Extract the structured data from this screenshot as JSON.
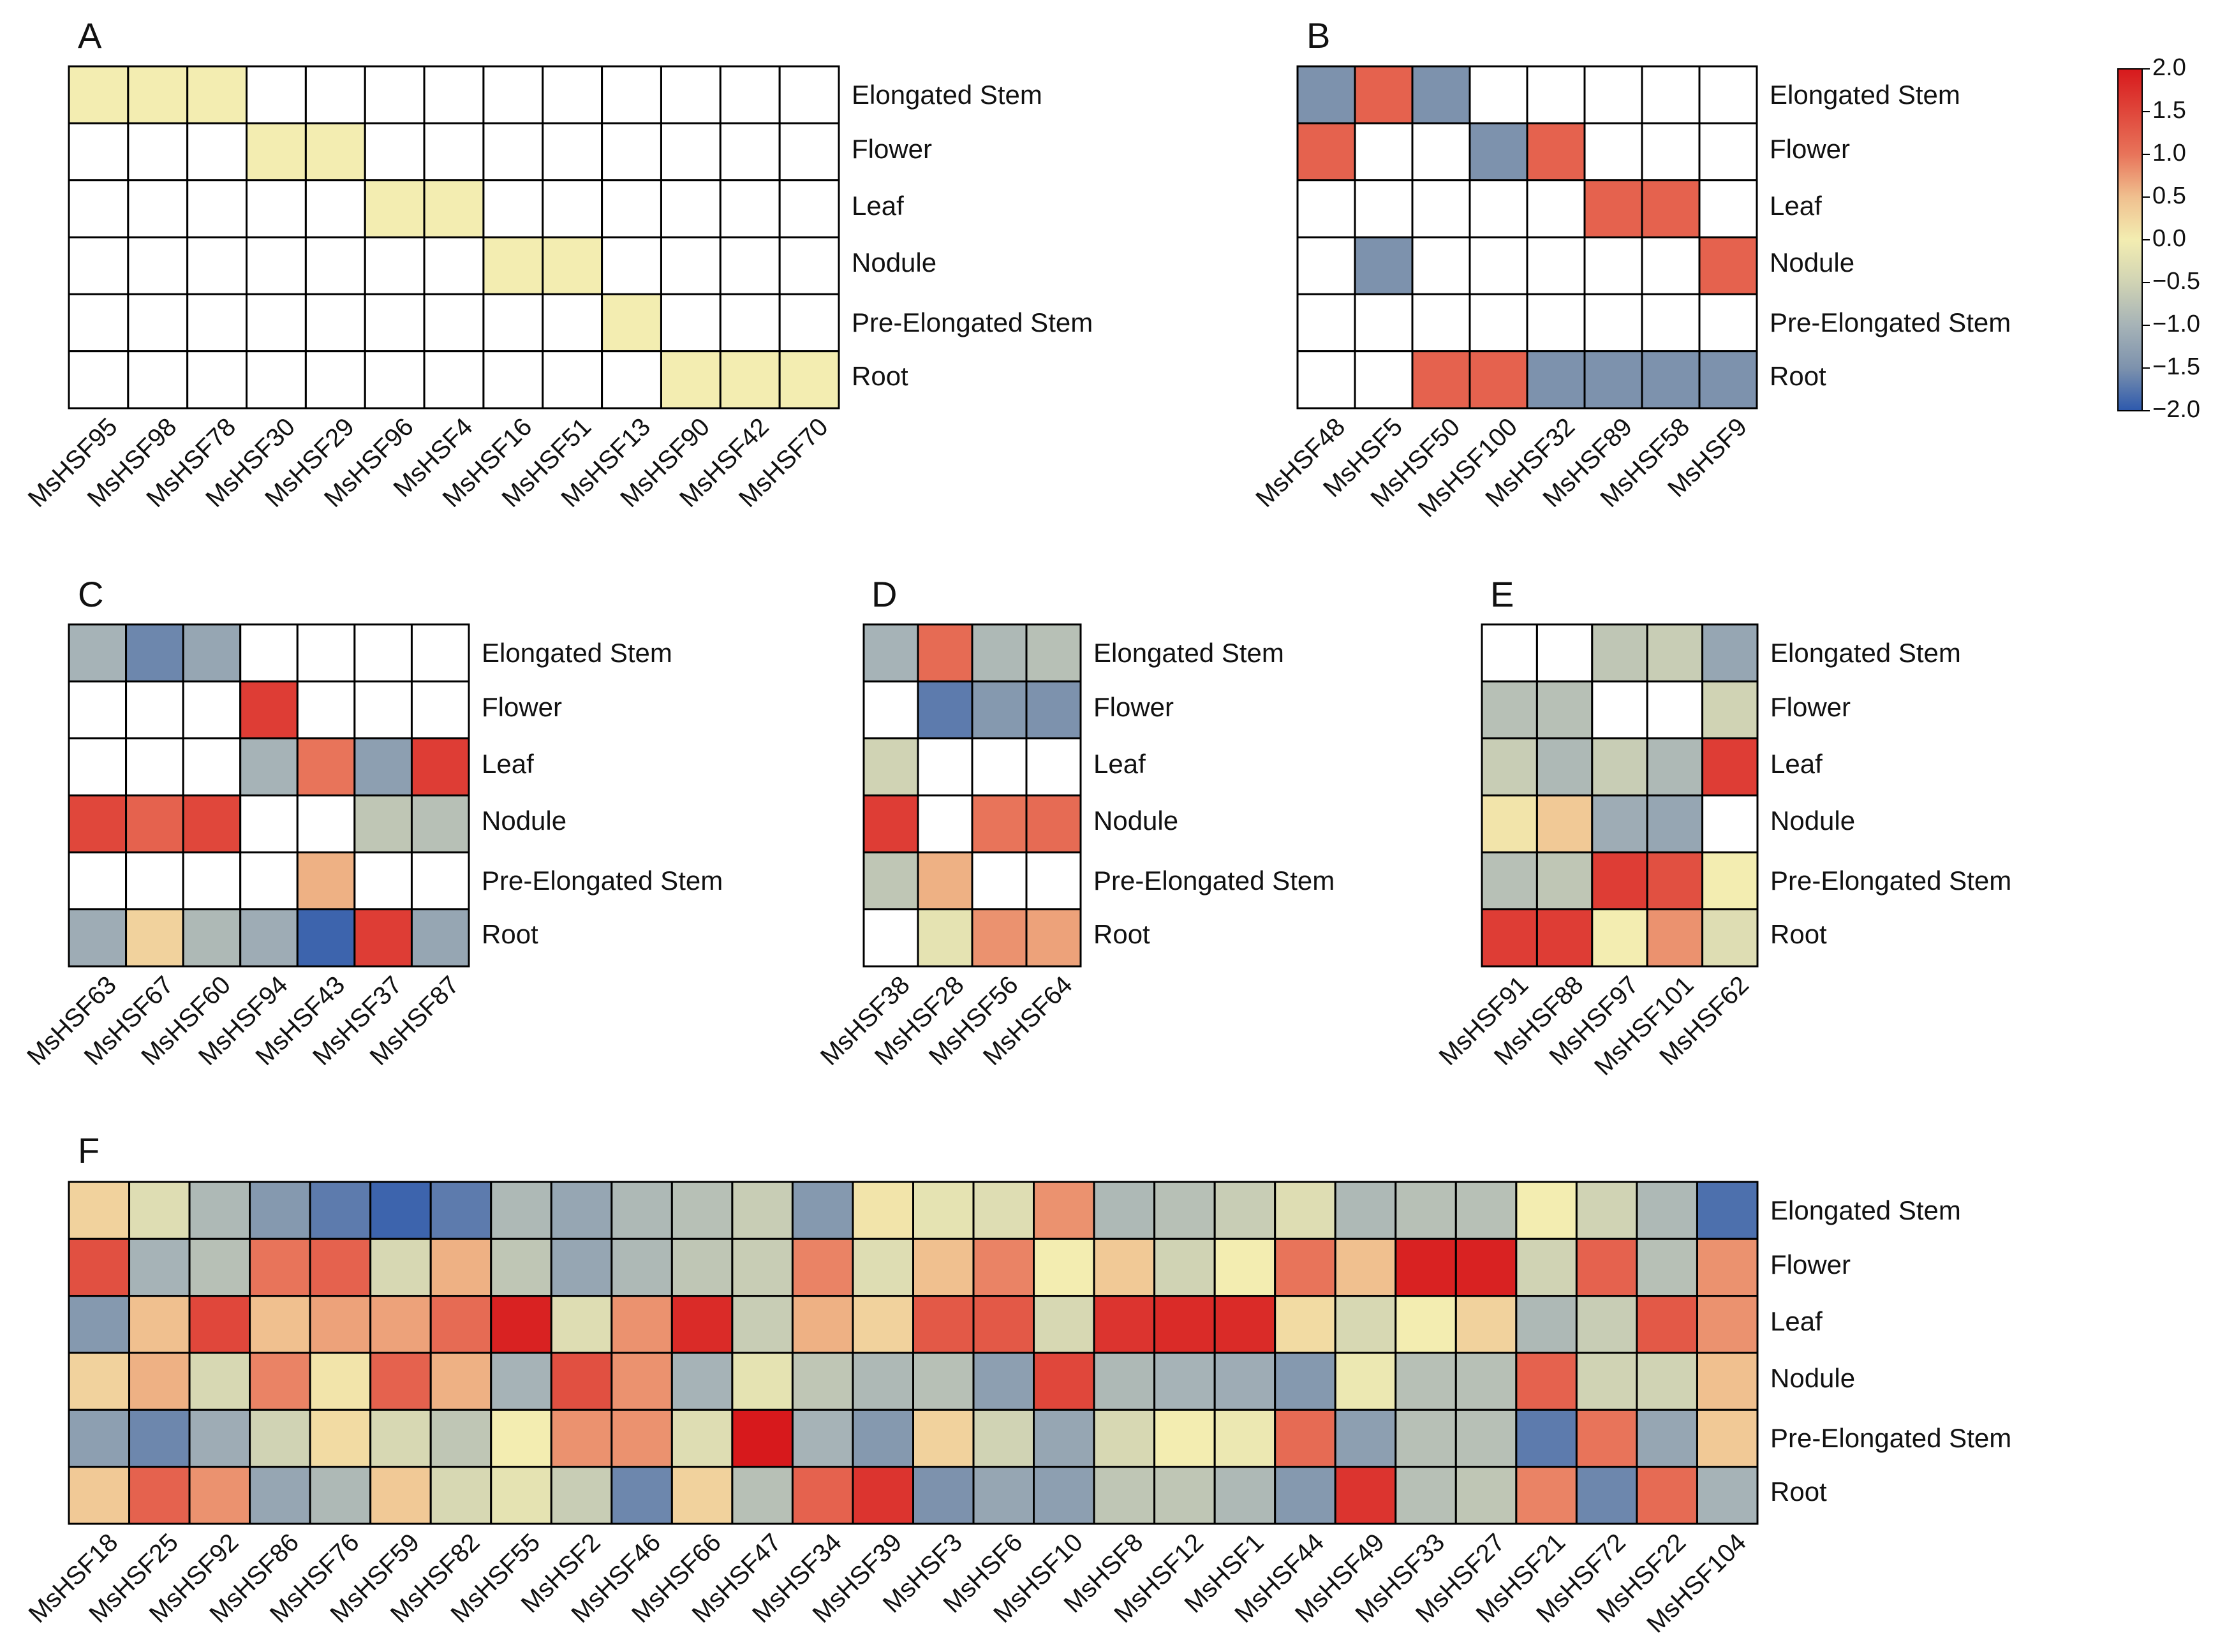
{
  "colors": {
    "blank": "#ffffff",
    "border": "#000000",
    "text": "#111111"
  },
  "colorbar": {
    "ticks": [
      "2.0",
      "1.5",
      "1.0",
      "0.5",
      "0.0",
      "−0.5",
      "−1.0",
      "−1.5",
      "−2.0"
    ],
    "stops": [
      {
        "value": 2.0,
        "color": "#d7191c"
      },
      {
        "value": 1.0,
        "color": "#e8745a"
      },
      {
        "value": 0.5,
        "color": "#f0c08f"
      },
      {
        "value": 0.0,
        "color": "#f3edb1"
      },
      {
        "value": -0.5,
        "color": "#d0d3b4"
      },
      {
        "value": -1.0,
        "color": "#a6b3b7"
      },
      {
        "value": -1.5,
        "color": "#7d92ad"
      },
      {
        "value": -2.0,
        "color": "#2d59ad"
      }
    ]
  },
  "chart_data": [
    {
      "type": "heatmap",
      "panel": "A",
      "rows": [
        "Elongated Stem",
        "Flower",
        "Leaf",
        "Nodule",
        "Pre-Elongated Stem",
        "Root"
      ],
      "columns": [
        "MsHSF95",
        "MsHSF98",
        "MsHSF78",
        "MsHSF30",
        "MsHSF29",
        "MsHSF96",
        "MsHSF4",
        "MsHSF16",
        "MsHSF51",
        "MsHSF13",
        "MsHSF90",
        "MsHSF42",
        "MsHSF70"
      ],
      "values": [
        [
          0,
          0,
          0,
          null,
          null,
          null,
          null,
          null,
          null,
          null,
          null,
          null,
          null
        ],
        [
          null,
          null,
          null,
          0,
          0,
          null,
          null,
          null,
          null,
          null,
          null,
          null,
          null
        ],
        [
          null,
          null,
          null,
          null,
          null,
          0,
          0,
          null,
          null,
          null,
          null,
          null,
          null
        ],
        [
          null,
          null,
          null,
          null,
          null,
          null,
          null,
          0,
          0,
          null,
          null,
          null,
          null
        ],
        [
          null,
          null,
          null,
          null,
          null,
          null,
          null,
          null,
          null,
          0,
          null,
          null,
          null
        ],
        [
          null,
          null,
          null,
          null,
          null,
          null,
          null,
          null,
          null,
          null,
          0,
          0,
          0
        ]
      ]
    },
    {
      "type": "heatmap",
      "panel": "B",
      "rows": [
        "Elongated Stem",
        "Flower",
        "Leaf",
        "Nodule",
        "Pre-Elongated Stem",
        "Root"
      ],
      "columns": [
        "MsHSF48",
        "MsHSF5",
        "MsHSF50",
        "MsHSF100",
        "MsHSF32",
        "MsHSF89",
        "MsHSF58",
        "MsHSF9"
      ],
      "values": [
        [
          -1.5,
          1.2,
          -1.5,
          null,
          null,
          null,
          null,
          null
        ],
        [
          1.2,
          null,
          null,
          -1.5,
          1.2,
          null,
          null,
          null
        ],
        [
          null,
          null,
          null,
          null,
          null,
          1.2,
          1.2,
          null
        ],
        [
          null,
          -1.5,
          null,
          null,
          null,
          null,
          null,
          1.2
        ],
        [
          null,
          null,
          null,
          null,
          null,
          null,
          null,
          null
        ],
        [
          null,
          null,
          1.2,
          1.2,
          -1.5,
          -1.5,
          -1.5,
          -1.5
        ]
      ]
    },
    {
      "type": "heatmap",
      "panel": "C",
      "rows": [
        "Elongated Stem",
        "Flower",
        "Leaf",
        "Nodule",
        "Pre-Elongated Stem",
        "Root"
      ],
      "columns": [
        "MsHSF63",
        "MsHSF67",
        "MsHSF60",
        "MsHSF94",
        "MsHSF43",
        "MsHSF37",
        "MsHSF87"
      ],
      "values": [
        [
          -1.0,
          -1.6,
          -1.2,
          null,
          null,
          null,
          null
        ],
        [
          null,
          null,
          null,
          1.6,
          null,
          null,
          null
        ],
        [
          null,
          null,
          null,
          -1.0,
          1.0,
          -1.3,
          1.6
        ],
        [
          1.5,
          1.2,
          1.5,
          null,
          null,
          -0.7,
          -0.8
        ],
        [
          null,
          null,
          null,
          null,
          0.6,
          null,
          null
        ],
        [
          -1.1,
          0.3,
          -0.9,
          -1.1,
          -1.9,
          1.6,
          -1.2
        ]
      ]
    },
    {
      "type": "heatmap",
      "panel": "D",
      "rows": [
        "Elongated Stem",
        "Flower",
        "Leaf",
        "Nodule",
        "Pre-Elongated Stem",
        "Root"
      ],
      "columns": [
        "MsHSF38",
        "MsHSF28",
        "MsHSF56",
        "MsHSF64"
      ],
      "values": [
        [
          -1.0,
          1.1,
          -0.9,
          -0.8
        ],
        [
          null,
          -1.7,
          -1.4,
          -1.5
        ],
        [
          -0.5,
          null,
          null,
          null
        ],
        [
          1.6,
          null,
          1.0,
          1.1
        ],
        [
          -0.7,
          0.6,
          null,
          null
        ],
        [
          null,
          -0.2,
          0.8,
          0.7
        ]
      ]
    },
    {
      "type": "heatmap",
      "panel": "E",
      "rows": [
        "Elongated Stem",
        "Flower",
        "Leaf",
        "Nodule",
        "Pre-Elongated Stem",
        "Root"
      ],
      "columns": [
        "MsHSF91",
        "MsHSF88",
        "MsHSF97",
        "MsHSF101",
        "MsHSF62"
      ],
      "values": [
        [
          null,
          null,
          -0.7,
          -0.6,
          -1.2
        ],
        [
          -0.8,
          -0.8,
          null,
          null,
          -0.5
        ],
        [
          -0.6,
          -0.9,
          -0.6,
          -0.9,
          1.6
        ],
        [
          0.1,
          0.4,
          -1.1,
          -1.2,
          null
        ],
        [
          -0.8,
          -0.7,
          1.6,
          1.4,
          0.0
        ],
        [
          1.6,
          1.6,
          0.0,
          0.8,
          -0.3
        ]
      ]
    },
    {
      "type": "heatmap",
      "panel": "F",
      "rows": [
        "Elongated Stem",
        "Flower",
        "Leaf",
        "Nodule",
        "Pre-Elongated Stem",
        "Root"
      ],
      "columns": [
        "MsHSF18",
        "MsHSF25",
        "MsHSF92",
        "MsHSF86",
        "MsHSF76",
        "MsHSF59",
        "MsHSF82",
        "MsHSF55",
        "MsHSF2",
        "MsHSF46",
        "MsHSF66",
        "MsHSF47",
        "MsHSF34",
        "MsHSF39",
        "MsHSF3",
        "MsHSF6",
        "MsHSF10",
        "MsHSF8",
        "MsHSF12",
        "MsHSF1",
        "MsHSF44",
        "MsHSF49",
        "MsHSF33",
        "MsHSF27",
        "MsHSF21",
        "MsHSF72",
        "MsHSF22",
        "MsHSF104"
      ],
      "values": [
        [
          0.3,
          -0.3,
          -0.9,
          -1.4,
          -1.7,
          -1.9,
          -1.7,
          -0.9,
          -1.2,
          -0.9,
          -0.8,
          -0.6,
          -1.4,
          0.1,
          -0.2,
          -0.3,
          0.8,
          -0.9,
          -0.8,
          -0.6,
          -0.3,
          -0.9,
          -0.8,
          -0.8,
          0.0,
          -0.5,
          -0.9,
          -1.8
        ],
        [
          1.4,
          -1.0,
          -0.8,
          1.0,
          1.2,
          -0.4,
          0.6,
          -0.7,
          -1.2,
          -0.9,
          -0.7,
          -0.6,
          0.9,
          -0.3,
          0.5,
          0.9,
          0.0,
          0.4,
          -0.5,
          0.0,
          1.0,
          0.5,
          1.9,
          1.9,
          -0.5,
          1.2,
          -0.8,
          0.8
        ],
        [
          -1.4,
          0.5,
          1.5,
          0.5,
          0.7,
          0.7,
          1.1,
          1.9,
          -0.3,
          0.8,
          1.8,
          -0.6,
          0.6,
          0.3,
          1.3,
          1.3,
          -0.4,
          1.7,
          1.8,
          1.8,
          0.2,
          -0.4,
          0.0,
          0.3,
          -0.9,
          -0.6,
          1.3,
          0.8
        ],
        [
          0.3,
          0.6,
          -0.4,
          0.9,
          0.1,
          1.2,
          0.6,
          -1.0,
          1.4,
          0.8,
          -1.0,
          -0.2,
          -0.7,
          -0.9,
          -0.8,
          -1.3,
          1.5,
          -0.9,
          -1.0,
          -1.1,
          -1.4,
          -0.1,
          -0.8,
          -0.8,
          1.2,
          -0.5,
          -0.5,
          0.5
        ],
        [
          -1.3,
          -1.6,
          -1.1,
          -0.5,
          0.2,
          -0.4,
          -0.7,
          0.0,
          0.8,
          0.8,
          -0.3,
          2.0,
          -1.0,
          -1.4,
          0.3,
          -0.5,
          -1.2,
          -0.4,
          0.0,
          -0.1,
          1.1,
          -1.3,
          -0.8,
          -0.8,
          -1.7,
          1.0,
          -1.2,
          0.4
        ],
        [
          0.4,
          1.2,
          0.8,
          -1.2,
          -0.9,
          0.4,
          -0.4,
          -0.2,
          -0.6,
          -1.6,
          0.3,
          -0.8,
          1.2,
          1.7,
          -1.5,
          -1.2,
          -1.3,
          -0.7,
          -0.7,
          -0.9,
          -1.4,
          1.7,
          -0.8,
          -0.7,
          0.9,
          -1.6,
          1.1,
          -1.0
        ]
      ]
    }
  ]
}
